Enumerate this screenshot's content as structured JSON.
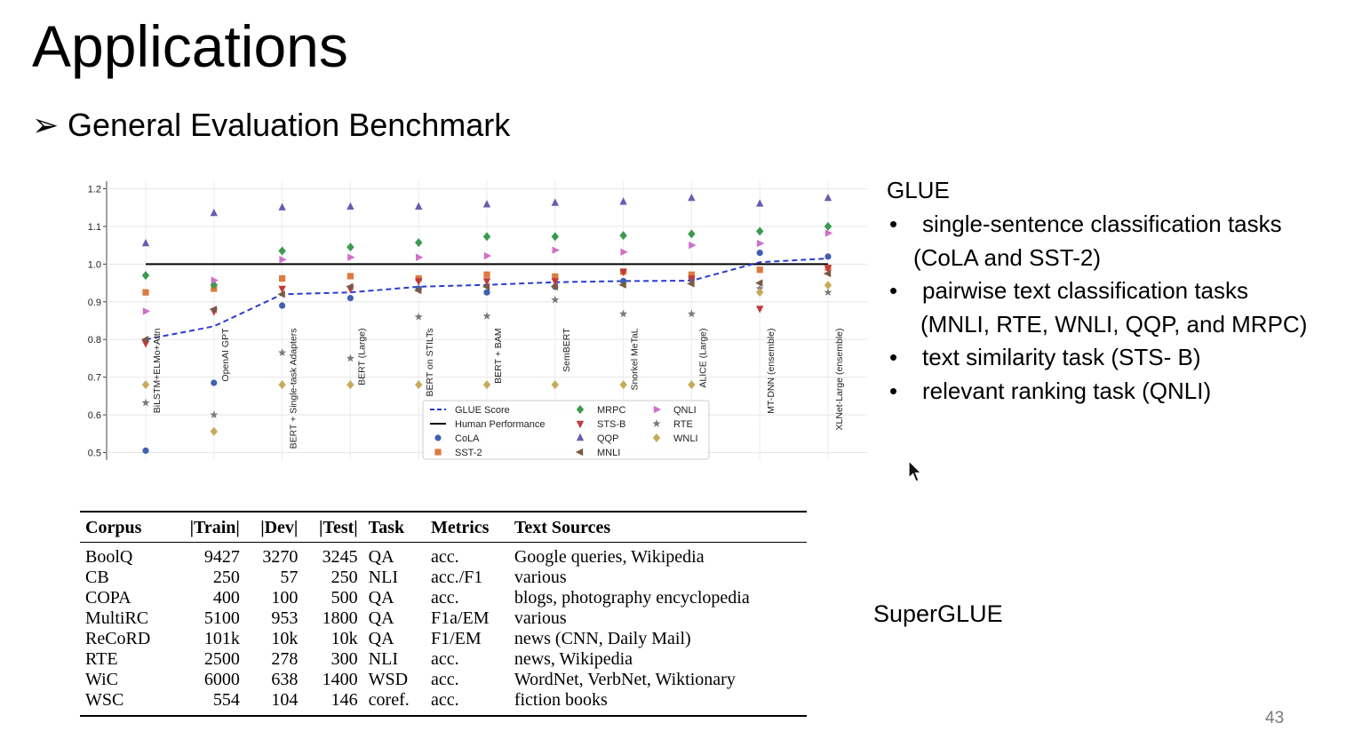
{
  "slide": {
    "title": "Applications",
    "subtitle_arrow": "➢",
    "subtitle": "General Evaluation Benchmark",
    "page_number": "43"
  },
  "glue": {
    "heading": "GLUE",
    "bullet": "•",
    "items": [
      {
        "line1": "single-sentence classification tasks",
        "line2": "(CoLA and SST-2)"
      },
      {
        "line1": "pairwise text classification tasks",
        "line2": "(MNLI, RTE, WNLI, QQP, and MRPC)"
      },
      {
        "line1": "text similarity task (STS- B)"
      },
      {
        "line1": "relevant ranking task (QNLI)"
      }
    ]
  },
  "superglue": {
    "heading": "SuperGLUE"
  },
  "table": {
    "headers": [
      "Corpus",
      "|Train|",
      "|Dev|",
      "|Test|",
      "Task",
      "Metrics",
      "Text Sources"
    ],
    "rows": [
      [
        "BoolQ",
        "9427",
        "3270",
        "3245",
        "QA",
        "acc.",
        "Google queries, Wikipedia"
      ],
      [
        "CB",
        "250",
        "57",
        "250",
        "NLI",
        "acc./F1",
        "various"
      ],
      [
        "COPA",
        "400",
        "100",
        "500",
        "QA",
        "acc.",
        "blogs, photography encyclopedia"
      ],
      [
        "MultiRC",
        "5100",
        "953",
        "1800",
        "QA",
        "F1a/EM",
        "various"
      ],
      [
        "ReCoRD",
        "101k",
        "10k",
        "10k",
        "QA",
        "F1/EM",
        "news (CNN, Daily Mail)"
      ],
      [
        "RTE",
        "2500",
        "278",
        "300",
        "NLI",
        "acc.",
        "news, Wikipedia"
      ],
      [
        "WiC",
        "6000",
        "638",
        "1400",
        "WSD",
        "acc.",
        "WordNet, VerbNet, Wiktionary"
      ],
      [
        "WSC",
        "554",
        "104",
        "146",
        "coref.",
        "acc.",
        "fiction books"
      ]
    ]
  },
  "chart_data": {
    "type": "scatter",
    "ylim": [
      0.48,
      1.22
    ],
    "yticks": [
      "0.5",
      "0.6",
      "0.7",
      "0.8",
      "0.9",
      "1.0",
      "1.1",
      "1.2"
    ],
    "models": [
      "BiLSTM+ELMo+Attn",
      "OpenAI GPT",
      "BERT + Single-task Adapters",
      "BERT (Large)",
      "BERT on STILTs",
      "BERT + BAM",
      "SemBERT",
      "Snorkel MeTaL",
      "ALICE (Large)",
      "MT-DNN (ensemble)",
      "XLNet-Large (ensemble)"
    ],
    "glue_score": [
      0.8,
      0.835,
      0.92,
      0.925,
      0.94,
      0.945,
      0.952,
      0.955,
      0.956,
      1.005,
      1.015
    ],
    "human_performance": 1.0,
    "series": [
      {
        "name": "CoLA",
        "marker": "circle",
        "color": "#4060b0",
        "values": [
          0.505,
          0.685,
          0.89,
          0.91,
          0.935,
          0.925,
          0.94,
          0.955,
          0.96,
          1.03,
          1.02
        ]
      },
      {
        "name": "SST-2",
        "marker": "square",
        "color": "#dd7a3e",
        "values": [
          0.925,
          0.935,
          0.962,
          0.968,
          0.962,
          0.972,
          0.967,
          0.98,
          0.972,
          0.985,
          0.99
        ]
      },
      {
        "name": "MRPC",
        "marker": "diamond",
        "color": "#3a9a4e",
        "values": [
          0.97,
          0.945,
          1.035,
          1.045,
          1.057,
          1.073,
          1.073,
          1.076,
          1.08,
          1.087,
          1.1
        ]
      },
      {
        "name": "STS-B",
        "marker": "tri-down",
        "color": "#c0393b",
        "values": [
          0.79,
          0.875,
          0.935,
          0.935,
          0.955,
          0.955,
          0.955,
          0.98,
          0.962,
          0.882,
          0.99
        ]
      },
      {
        "name": "QQP",
        "marker": "tri-up",
        "color": "#6c5ab0",
        "values": [
          1.055,
          1.135,
          1.15,
          1.152,
          1.152,
          1.158,
          1.162,
          1.165,
          1.175,
          1.16,
          1.175
        ]
      },
      {
        "name": "MNLI",
        "marker": "tri-left",
        "color": "#7a5a46",
        "values": [
          0.8,
          0.88,
          0.92,
          0.94,
          0.93,
          0.94,
          0.94,
          0.945,
          0.948,
          0.95,
          0.975
        ]
      },
      {
        "name": "QNLI",
        "marker": "tri-right",
        "color": "#d070c8",
        "values": [
          0.875,
          0.957,
          1.012,
          1.018,
          1.018,
          1.022,
          1.037,
          1.032,
          1.05,
          1.055,
          1.082
        ]
      },
      {
        "name": "RTE",
        "marker": "star",
        "color": "#7a7a7a",
        "values": [
          0.632,
          0.6,
          0.765,
          0.75,
          0.86,
          0.862,
          0.905,
          0.868,
          0.868,
          0.935,
          0.925
        ]
      },
      {
        "name": "WNLI",
        "marker": "diamond",
        "color": "#c8aa5a",
        "values": [
          0.68,
          0.556,
          0.68,
          0.68,
          0.68,
          0.68,
          0.68,
          0.68,
          0.68,
          0.925,
          0.944
        ]
      }
    ],
    "legend": [
      {
        "label": "GLUE Score",
        "kind": "dashed-line",
        "color": "#2b3bd0"
      },
      {
        "label": "Human Performance",
        "kind": "line",
        "color": "#000000"
      },
      {
        "label": "CoLA",
        "kind": "circle",
        "color": "#4060b0"
      },
      {
        "label": "SST-2",
        "kind": "square",
        "color": "#dd7a3e"
      },
      {
        "label": "MRPC",
        "kind": "diamond",
        "color": "#3a9a4e"
      },
      {
        "label": "STS-B",
        "kind": "tri-down",
        "color": "#c0393b"
      },
      {
        "label": "QQP",
        "kind": "tri-up",
        "color": "#6c5ab0"
      },
      {
        "label": "MNLI",
        "kind": "tri-left",
        "color": "#7a5a46"
      },
      {
        "label": "QNLI",
        "kind": "tri-right",
        "color": "#d070c8"
      },
      {
        "label": "RTE",
        "kind": "star",
        "color": "#7a7a7a"
      },
      {
        "label": "WNLI",
        "kind": "diamond",
        "color": "#c8aa5a"
      }
    ],
    "legend_placement": "lower-center",
    "grid": true
  }
}
